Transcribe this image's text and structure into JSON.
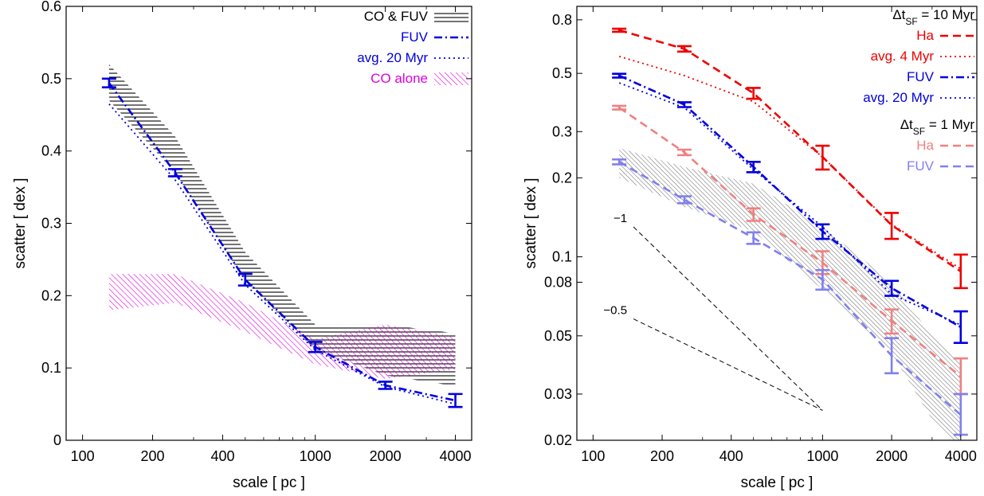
{
  "chart_data": [
    {
      "type": "line",
      "xscale": "log",
      "yscale": "linear",
      "xlabel": "scale [ pc ]",
      "ylabel": "scatter [ dex ]",
      "xlim": [
        85,
        4700
      ],
      "ylim": [
        0,
        0.6
      ],
      "xticks": [
        {
          "v": 100,
          "label": "100"
        },
        {
          "v": 200,
          "label": "200"
        },
        {
          "v": 400,
          "label": "400"
        },
        {
          "v": 1000,
          "label": "1000"
        },
        {
          "v": 2000,
          "label": "2000"
        },
        {
          "v": 4000,
          "label": "4000"
        }
      ],
      "yticks": [
        {
          "v": 0,
          "label": "0"
        },
        {
          "v": 0.1,
          "label": "0.1"
        },
        {
          "v": 0.2,
          "label": "0.2"
        },
        {
          "v": 0.3,
          "label": "0.3"
        },
        {
          "v": 0.4,
          "label": "0.4"
        },
        {
          "v": 0.5,
          "label": "0.5"
        },
        {
          "v": 0.6,
          "label": "0.6"
        }
      ],
      "legend_position": "top-right",
      "bands": [
        {
          "name": "CO & FUV",
          "color": "#000000",
          "hatch": "horizontal",
          "x": [
            130,
            250,
            500,
            1000,
            2000,
            4000
          ],
          "upper": [
            0.52,
            0.42,
            0.26,
            0.16,
            0.16,
            0.148
          ],
          "lower": [
            0.47,
            0.37,
            0.22,
            0.125,
            0.09,
            0.075
          ]
        },
        {
          "name": "CO alone",
          "color": "#dd00dd",
          "hatch": "diagonal",
          "x": [
            130,
            250,
            500,
            1000,
            2000,
            4000
          ],
          "upper": [
            0.23,
            0.23,
            0.19,
            0.14,
            0.16,
            0.143
          ],
          "lower": [
            0.18,
            0.19,
            0.15,
            0.105,
            0.085,
            0.098
          ]
        }
      ],
      "series": [
        {
          "name": "FUV",
          "color": "#0000dd",
          "dash": "dashdot",
          "x": [
            130,
            250,
            500,
            1000,
            2000,
            4000
          ],
          "values": [
            0.494,
            0.37,
            0.222,
            0.129,
            0.076,
            0.055
          ],
          "errors": [
            0.006,
            0.005,
            0.008,
            0.007,
            0.005,
            0.009
          ]
        },
        {
          "name": "avg. 20 Myr",
          "color": "#0000dd",
          "dash": "dotted",
          "x": [
            130,
            250,
            500,
            1000,
            2000,
            4000
          ],
          "values": [
            0.465,
            0.36,
            0.215,
            0.125,
            0.074,
            0.05
          ]
        }
      ]
    },
    {
      "type": "line",
      "xscale": "log",
      "yscale": "log",
      "xlabel": "scale [ pc ]",
      "ylabel": "scatter [ dex ]",
      "xlim": [
        85,
        4700
      ],
      "ylim": [
        0.02,
        0.9
      ],
      "xticks": [
        {
          "v": 100,
          "label": "100"
        },
        {
          "v": 200,
          "label": "200"
        },
        {
          "v": 400,
          "label": "400"
        },
        {
          "v": 1000,
          "label": "1000"
        },
        {
          "v": 2000,
          "label": "2000"
        },
        {
          "v": 4000,
          "label": "4000"
        }
      ],
      "yticks": [
        {
          "v": 0.02,
          "label": "0.02"
        },
        {
          "v": 0.03,
          "label": "0.03"
        },
        {
          "v": 0.05,
          "label": "0.05"
        },
        {
          "v": 0.08,
          "label": "0.08"
        },
        {
          "v": 0.1,
          "label": "0.1"
        },
        {
          "v": 0.2,
          "label": "0.2"
        },
        {
          "v": 0.3,
          "label": "0.3"
        },
        {
          "v": 0.5,
          "label": "0.5"
        },
        {
          "v": 0.8,
          "label": "0.8"
        }
      ],
      "legend_position": "top-right",
      "legend_headers": [
        {
          "main": "Δt",
          "sub": "SF",
          "rest": " = 10 Myr"
        },
        {
          "main": "Δt",
          "sub": "SF",
          "rest": " = 1 Myr"
        }
      ],
      "bands": [
        {
          "name": "",
          "color": "#000000",
          "hatch": "diagonal",
          "x": [
            130,
            250,
            500,
            1000,
            2000,
            3000,
            4000
          ],
          "upper": [
            0.26,
            0.22,
            0.19,
            0.13,
            0.08,
            0.05,
            0.04
          ],
          "lower": [
            0.2,
            0.155,
            0.125,
            0.075,
            0.043,
            0.024,
            0.018
          ]
        }
      ],
      "series": [
        {
          "name": "Ha",
          "color": "#ee0000",
          "dash": "dashed",
          "group": 0,
          "x": [
            130,
            250,
            500,
            1000,
            2000,
            4000
          ],
          "values": [
            0.73,
            0.62,
            0.42,
            0.24,
            0.132,
            0.088
          ],
          "errors_lo": [
            0.01,
            0.015,
            0.02,
            0.025,
            0.015,
            0.012
          ],
          "errors_hi": [
            0.01,
            0.015,
            0.02,
            0.025,
            0.015,
            0.014
          ]
        },
        {
          "name": "avg. 4 Myr",
          "color": "#ee0000",
          "dash": "dotted",
          "group": 0,
          "x": [
            130,
            250,
            500,
            1000,
            2000,
            4000
          ],
          "values": [
            0.58,
            0.49,
            0.39,
            0.24,
            0.133,
            0.09
          ]
        },
        {
          "name": "FUV",
          "color": "#0000dd",
          "dash": "dashdot",
          "group": 0,
          "x": [
            130,
            250,
            500,
            1000,
            2000,
            4000
          ],
          "values": [
            0.49,
            0.38,
            0.22,
            0.125,
            0.076,
            0.054
          ],
          "errors_lo": [
            0.008,
            0.008,
            0.01,
            0.008,
            0.005,
            0.007
          ],
          "errors_hi": [
            0.008,
            0.008,
            0.01,
            0.008,
            0.005,
            0.008
          ]
        },
        {
          "name": "avg. 20 Myr",
          "color": "#0000dd",
          "dash": "dotted",
          "group": 0,
          "x": [
            130,
            250,
            500,
            1000,
            2000,
            4000
          ],
          "values": [
            0.46,
            0.37,
            0.215,
            0.13,
            0.072,
            0.055
          ]
        },
        {
          "name": "Ha",
          "color": "#f08080",
          "dash": "dashed",
          "group": 1,
          "x": [
            130,
            250,
            500,
            1000,
            2000,
            4000
          ],
          "values": [
            0.37,
            0.25,
            0.145,
            0.095,
            0.057,
            0.035
          ],
          "errors_lo": [
            0.006,
            0.006,
            0.008,
            0.009,
            0.006,
            0.005
          ],
          "errors_hi": [
            0.006,
            0.006,
            0.008,
            0.01,
            0.006,
            0.006
          ]
        },
        {
          "name": "FUV",
          "color": "#8080ee",
          "dash": "dashed",
          "group": 1,
          "x": [
            130,
            250,
            500,
            1000,
            2000,
            4000
          ],
          "values": [
            0.23,
            0.165,
            0.118,
            0.082,
            0.042,
            0.025
          ],
          "errors_lo": [
            0.005,
            0.005,
            0.006,
            0.007,
            0.006,
            0.004
          ],
          "errors_hi": [
            0.005,
            0.005,
            0.006,
            0.007,
            0.007,
            0.005
          ]
        }
      ],
      "slope_guides": [
        {
          "label": "−1",
          "from": [
            150,
            0.13
          ],
          "to": [
            1000,
            0.026
          ]
        },
        {
          "label": "−0.5",
          "from": [
            150,
            0.058
          ],
          "to": [
            1000,
            0.026
          ]
        }
      ]
    }
  ]
}
